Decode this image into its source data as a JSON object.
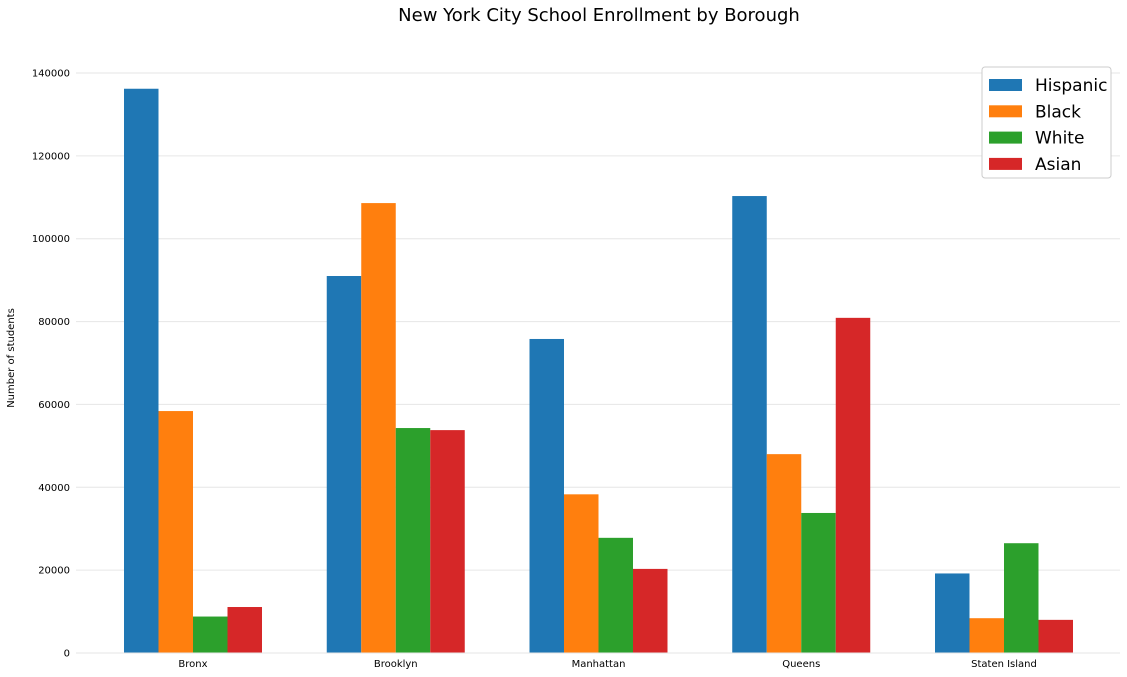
{
  "chart_data": {
    "type": "bar",
    "title": "New York City School Enrollment by Borough",
    "xlabel": "",
    "ylabel": "Number of students",
    "categories": [
      "Bronx",
      "Brooklyn",
      "Manhattan",
      "Queens",
      "Staten Island"
    ],
    "series": [
      {
        "name": "Hispanic",
        "color": "#1f77b4",
        "values": [
          136200,
          91000,
          75800,
          110300,
          19200
        ]
      },
      {
        "name": "Black",
        "color": "#ff7f0e",
        "values": [
          58400,
          108600,
          38300,
          48000,
          8400
        ]
      },
      {
        "name": "White",
        "color": "#2ca02c",
        "values": [
          8800,
          54300,
          27800,
          33800,
          26500
        ]
      },
      {
        "name": "Asian",
        "color": "#d62728",
        "values": [
          11100,
          53800,
          20300,
          80900,
          8000
        ]
      }
    ],
    "ylim": [
      0,
      140000
    ],
    "yticks": [
      0,
      20000,
      40000,
      60000,
      80000,
      100000,
      120000,
      140000
    ],
    "ytick_labels": [
      "0",
      "20000",
      "40000",
      "60000",
      "80000",
      "100000",
      "120000",
      "140000"
    ],
    "grid": "horizontal",
    "legend_position": "top-right"
  }
}
